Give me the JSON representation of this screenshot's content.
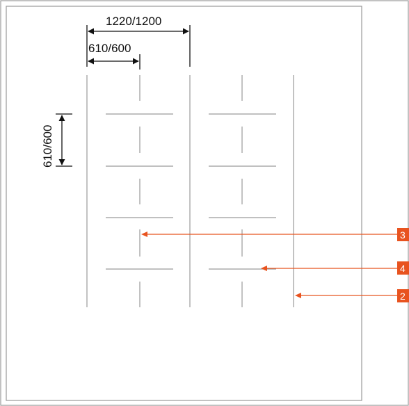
{
  "dimensions": {
    "panel_width": "1220/1200",
    "panel_half": "610/600",
    "panel_height": "610/600"
  },
  "callouts": [
    {
      "label": "3"
    },
    {
      "label": "4"
    },
    {
      "label": "2"
    }
  ],
  "colors": {
    "accent": "#E8531F",
    "line": "#9A9A9A",
    "frame": "#9A9A9A",
    "dimension": "#111111"
  }
}
